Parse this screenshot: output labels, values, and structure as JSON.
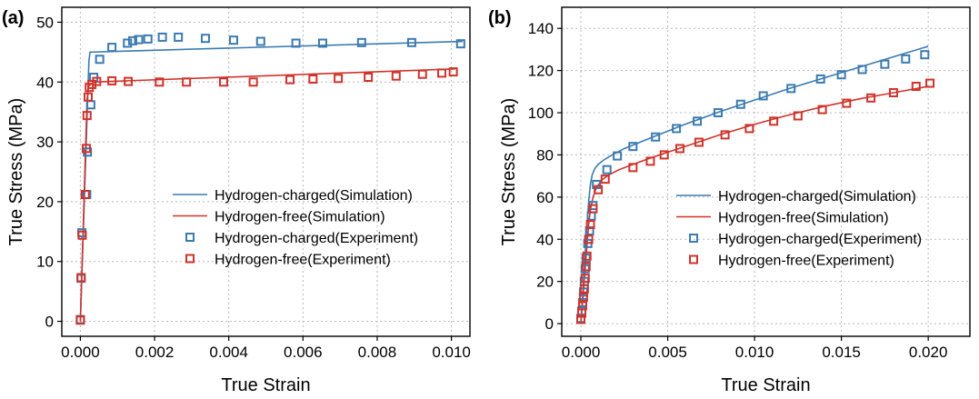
{
  "chart_data": [
    {
      "panel_label": "(a)",
      "type": "scatter",
      "xlabel": "True Strain",
      "ylabel": "True Stress (MPa)",
      "xlim": [
        -0.0005,
        0.0105
      ],
      "ylim": [
        -2.5,
        52.5
      ],
      "xticks": [
        0.0,
        0.002,
        0.004,
        0.006,
        0.008,
        0.01
      ],
      "xtick_labels": [
        "0.000",
        "0.002",
        "0.004",
        "0.006",
        "0.008",
        "0.010"
      ],
      "yticks": [
        0,
        10,
        20,
        30,
        40,
        50
      ],
      "ytick_labels": [
        "0",
        "10",
        "20",
        "30",
        "40",
        "50"
      ],
      "grid": true,
      "legend_position": "right",
      "series": [
        {
          "name": "Hydrogen-charged(Simulation)",
          "kind": "line",
          "color": "#3b7bb0",
          "x": [
            0.0,
            0.00023,
            0.00026,
            0.0103
          ],
          "y": [
            0.0,
            43.5,
            45.0,
            46.8
          ]
        },
        {
          "name": "Hydrogen-free(Simulation)",
          "kind": "line",
          "color": "#d0332b",
          "x": [
            0.0,
            0.00018,
            0.00022,
            0.00035,
            0.0101
          ],
          "y": [
            0.0,
            37.0,
            39.3,
            40.0,
            42.2
          ]
        },
        {
          "name": "Hydrogen-charged(Experiment)",
          "kind": "scatter",
          "color": "#3b7bb0",
          "x": [
            0.0,
            2e-05,
            4e-05,
            0.00017,
            0.00019,
            0.00028,
            0.00036,
            0.00052,
            0.00085,
            0.00127,
            0.00141,
            0.00157,
            0.00182,
            0.00221,
            0.00264,
            0.00337,
            0.00413,
            0.00486,
            0.00581,
            0.00653,
            0.00758,
            0.00893,
            0.01025
          ],
          "y": [
            0.3,
            7.2,
            14.8,
            21.2,
            28.3,
            36.2,
            40.8,
            43.8,
            45.8,
            46.5,
            46.9,
            47.1,
            47.2,
            47.5,
            47.5,
            47.3,
            47.0,
            46.8,
            46.5,
            46.5,
            46.6,
            46.6,
            46.4
          ]
        },
        {
          "name": "Hydrogen-free(Experiment)",
          "kind": "scatter",
          "color": "#d0332b",
          "x": [
            0.0,
            2e-05,
            5e-05,
            0.00013,
            0.00016,
            0.00018,
            0.00021,
            0.00024,
            0.00031,
            0.00044,
            0.00085,
            0.00129,
            0.00213,
            0.00286,
            0.00386,
            0.00466,
            0.00565,
            0.00627,
            0.00695,
            0.00776,
            0.00851,
            0.00922,
            0.00974,
            0.01005
          ],
          "y": [
            0.2,
            7.3,
            14.4,
            21.2,
            28.9,
            34.4,
            37.5,
            39.1,
            39.6,
            40.1,
            40.2,
            40.1,
            40.0,
            40.0,
            40.0,
            40.0,
            40.4,
            40.5,
            40.6,
            40.8,
            41.0,
            41.3,
            41.5,
            41.7
          ]
        }
      ]
    },
    {
      "panel_label": "(b)",
      "type": "scatter",
      "xlabel": "True Strain",
      "ylabel": "True Stress (MPa)",
      "xlim": [
        -0.0011,
        0.0224
      ],
      "ylim": [
        -6,
        150
      ],
      "xticks": [
        0.0,
        0.005,
        0.01,
        0.015,
        0.02
      ],
      "xtick_labels": [
        "0.000",
        "0.005",
        "0.010",
        "0.015",
        "0.020"
      ],
      "yticks": [
        0,
        20,
        40,
        60,
        80,
        100,
        120,
        140
      ],
      "ytick_labels": [
        "0",
        "20",
        "40",
        "60",
        "80",
        "100",
        "120",
        "140"
      ],
      "grid": true,
      "legend_position": "right",
      "series": [
        {
          "name": "Hydrogen-charged(Simulation)",
          "kind": "line",
          "color": "#3b7bb0",
          "x": [
            0.0,
            0.0003,
            0.00045,
            0.00055,
            0.00065,
            0.0008,
            0.001,
            0.0013,
            0.0018,
            0.0025,
            0.004,
            0.006,
            0.008,
            0.01,
            0.012,
            0.014,
            0.016,
            0.018,
            0.02
          ],
          "y": [
            0.0,
            40.0,
            58.0,
            66.0,
            70.5,
            73.5,
            75.5,
            77.5,
            80.0,
            83.0,
            88.0,
            94.5,
            100.5,
            106.0,
            111.5,
            116.5,
            121.5,
            126.5,
            131.5
          ]
        },
        {
          "name": "Hydrogen-free(Simulation)",
          "kind": "line",
          "color": "#d0332b",
          "x": [
            0.0,
            0.0003,
            0.00045,
            0.00055,
            0.0007,
            0.0009,
            0.0012,
            0.0016,
            0.0022,
            0.003,
            0.004,
            0.006,
            0.008,
            0.01,
            0.012,
            0.014,
            0.016,
            0.018,
            0.02
          ],
          "y": [
            0.0,
            32.0,
            47.0,
            54.0,
            60.0,
            64.5,
            68.0,
            70.5,
            73.0,
            75.5,
            78.5,
            84.0,
            89.5,
            94.5,
            99.0,
            103.0,
            106.5,
            109.5,
            112.5
          ]
        },
        {
          "name": "Hydrogen-charged(Experiment)",
          "kind": "scatter",
          "color": "#3b7bb0",
          "x": [
            0.0,
            5e-05,
            0.0001,
            0.00015,
            0.0002,
            0.00025,
            0.0003,
            0.0004,
            0.0005,
            0.0006,
            0.0007,
            0.0009,
            0.0015,
            0.0021,
            0.003,
            0.0043,
            0.0055,
            0.0067,
            0.0079,
            0.0092,
            0.0105,
            0.0121,
            0.0138,
            0.015,
            0.0162,
            0.0175,
            0.0187,
            0.0198
          ],
          "y": [
            2.5,
            6.0,
            10.0,
            15.0,
            20.0,
            26.0,
            31.0,
            38.0,
            44.0,
            51.0,
            56.0,
            66.0,
            73.0,
            79.5,
            84.0,
            88.5,
            92.5,
            96.0,
            100.0,
            104.0,
            108.0,
            111.5,
            116.0,
            118.0,
            120.5,
            123.0,
            125.5,
            127.5
          ]
        },
        {
          "name": "Hydrogen-free(Experiment)",
          "kind": "scatter",
          "color": "#d0332b",
          "x": [
            0.0,
            5e-05,
            0.0001,
            0.00015,
            0.0002,
            0.00025,
            0.0003,
            0.00035,
            0.00045,
            0.00055,
            0.0007,
            0.001,
            0.0014,
            0.003,
            0.004,
            0.0048,
            0.0057,
            0.0068,
            0.0083,
            0.0097,
            0.0111,
            0.0125,
            0.0139,
            0.0153,
            0.0167,
            0.018,
            0.0193,
            0.0201
          ],
          "y": [
            2.0,
            5.0,
            8.5,
            12.5,
            16.5,
            21.5,
            27.0,
            32.0,
            40.0,
            47.0,
            54.5,
            63.5,
            68.5,
            74.0,
            77.0,
            80.0,
            83.0,
            86.0,
            89.5,
            92.5,
            96.0,
            98.5,
            101.5,
            104.5,
            107.0,
            109.5,
            112.5,
            114.0
          ]
        }
      ]
    }
  ]
}
